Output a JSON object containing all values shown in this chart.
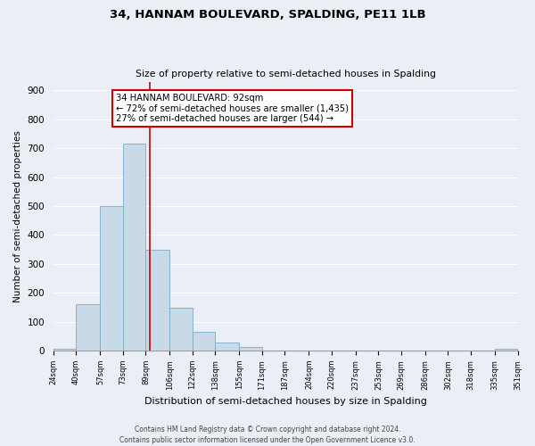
{
  "title": "34, HANNAM BOULEVARD, SPALDING, PE11 1LB",
  "subtitle": "Size of property relative to semi-detached houses in Spalding",
  "xlabel": "Distribution of semi-detached houses by size in Spalding",
  "ylabel": "Number of semi-detached properties",
  "bin_edges": [
    24,
    40,
    57,
    73,
    89,
    106,
    122,
    138,
    155,
    171,
    187,
    204,
    220,
    237,
    253,
    269,
    286,
    302,
    318,
    335,
    351
  ],
  "bin_labels": [
    "24sqm",
    "40sqm",
    "57sqm",
    "73sqm",
    "89sqm",
    "106sqm",
    "122sqm",
    "138sqm",
    "155sqm",
    "171sqm",
    "187sqm",
    "204sqm",
    "220sqm",
    "237sqm",
    "253sqm",
    "269sqm",
    "286sqm",
    "302sqm",
    "318sqm",
    "335sqm",
    "351sqm"
  ],
  "bar_heights": [
    5,
    160,
    500,
    715,
    350,
    148,
    65,
    28,
    13,
    0,
    0,
    0,
    0,
    0,
    0,
    0,
    0,
    0,
    0,
    5
  ],
  "bar_color": "#c8d9e8",
  "bar_edge_color": "#7aaac8",
  "property_size": 92,
  "property_line_color": "#cc0000",
  "annotation_line1": "34 HANNAM BOULEVARD: 92sqm",
  "annotation_line2": "← 72% of semi-detached houses are smaller (1,435)",
  "annotation_line3": "27% of semi-detached houses are larger (544) →",
  "annotation_box_color": "#ffffff",
  "annotation_box_edge": "#cc0000",
  "ylim": [
    0,
    930
  ],
  "yticks": [
    0,
    100,
    200,
    300,
    400,
    500,
    600,
    700,
    800,
    900
  ],
  "background_color": "#eaeff5",
  "plot_bg_color": "#eaeff5",
  "footer_line1": "Contains HM Land Registry data © Crown copyright and database right 2024.",
  "footer_line2": "Contains public sector information licensed under the Open Government Licence v3.0."
}
